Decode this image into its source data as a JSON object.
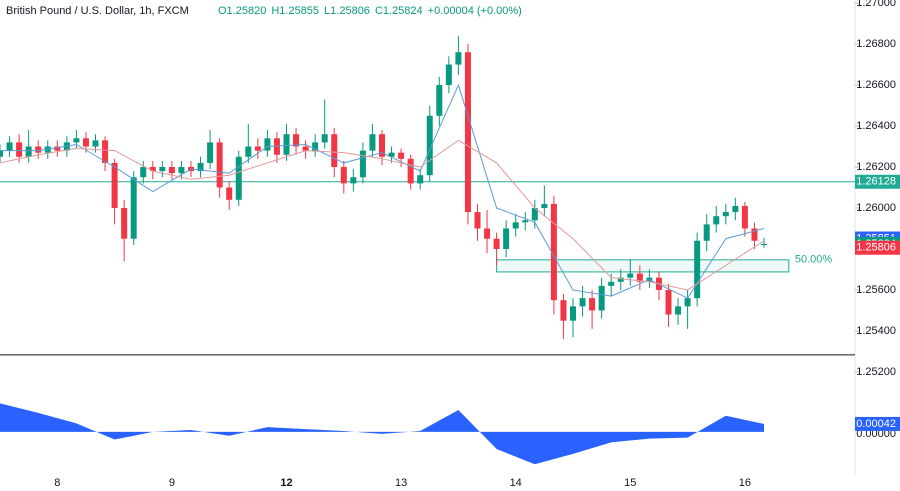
{
  "chart_data": {
    "type": "candlestick",
    "title": "British Pound / U.S. Dollar, 1h, FXCM",
    "ohlc_header": [
      "O1.25820",
      "H1.25855",
      "L1.25806",
      "C1.25824",
      "+0.00004 (+0.00%)"
    ],
    "categories": [
      null,
      null,
      null,
      null,
      null,
      null,
      "8",
      null,
      null,
      null,
      null,
      null,
      null,
      null,
      null,
      null,
      null,
      null,
      "9",
      null,
      null,
      null,
      null,
      null,
      null,
      null,
      null,
      null,
      null,
      null,
      "12",
      null,
      null,
      null,
      null,
      null,
      null,
      null,
      null,
      null,
      null,
      null,
      "13",
      null,
      null,
      null,
      null,
      null,
      null,
      null,
      null,
      null,
      null,
      null,
      "14",
      null,
      null,
      null,
      null,
      null,
      null,
      null,
      null,
      null,
      null,
      null,
      "15",
      null,
      null,
      null,
      null,
      null,
      null,
      null,
      null,
      null,
      null,
      null,
      "16",
      null,
      null
    ],
    "bold_categories": [
      "12"
    ],
    "open": [
      1.2625,
      1.2628,
      1.2632,
      1.2625,
      1.263,
      1.2627,
      1.263,
      1.2628,
      1.2632,
      1.2634,
      1.263,
      1.2633,
      1.2622,
      1.26,
      1.2585,
      1.2615,
      1.262,
      1.2618,
      1.262,
      1.2617,
      1.262,
      1.2618,
      1.2622,
      1.2632,
      1.261,
      1.2604,
      1.2625,
      1.263,
      1.2628,
      1.2634,
      1.2626,
      1.2636,
      1.263,
      1.2628,
      1.2632,
      1.2636,
      1.262,
      1.2612,
      1.2615,
      1.2628,
      1.2636,
      1.2625,
      1.2627,
      1.2624,
      1.2612,
      1.2616,
      1.2645,
      1.266,
      1.267,
      1.2676,
      1.2598,
      1.259,
      1.2585,
      1.258,
      1.259,
      1.2593,
      1.2594,
      1.26,
      1.2602,
      1.2555,
      1.2545,
      1.2552,
      1.2556,
      1.255,
      1.2562,
      1.2564,
      1.2566,
      1.2568,
      1.2564,
      1.2566,
      1.256,
      1.2548,
      1.2552,
      1.2556,
      1.2584,
      1.2592,
      1.2596,
      1.2598,
      1.2601,
      1.259,
      1.2582
    ],
    "high": [
      1.2631,
      1.2635,
      1.2636,
      1.2638,
      1.2633,
      1.2633,
      1.2633,
      1.2635,
      1.2638,
      1.2637,
      1.2636,
      1.2635,
      1.2624,
      1.2604,
      1.2618,
      1.2623,
      1.2623,
      1.2623,
      1.2623,
      1.2623,
      1.2623,
      1.2625,
      1.2638,
      1.2634,
      1.2613,
      1.2628,
      1.2641,
      1.2634,
      1.2638,
      1.2637,
      1.2641,
      1.2639,
      1.2633,
      1.2636,
      1.2653,
      1.2639,
      1.2623,
      1.2619,
      1.2632,
      1.2641,
      1.2638,
      1.263,
      1.2629,
      1.2626,
      1.2619,
      1.265,
      1.2664,
      1.2674,
      1.2684,
      1.268,
      1.2602,
      1.2599,
      1.2588,
      1.2594,
      1.2597,
      1.2598,
      1.2604,
      1.2611,
      1.2606,
      1.2558,
      1.2556,
      1.2562,
      1.256,
      1.2566,
      1.2568,
      1.257,
      1.2575,
      1.2572,
      1.257,
      1.2569,
      1.2563,
      1.2556,
      1.256,
      1.2588,
      1.2597,
      1.2601,
      1.2602,
      1.2605,
      1.2603,
      1.2593,
      1.25855
    ],
    "low": [
      1.2622,
      1.2625,
      1.2622,
      1.2622,
      1.2624,
      1.2624,
      1.2625,
      1.2625,
      1.2629,
      1.2627,
      1.2627,
      1.2618,
      1.2592,
      1.2574,
      1.2582,
      1.2612,
      1.2614,
      1.2615,
      1.2614,
      1.2614,
      1.2615,
      1.2615,
      1.2619,
      1.2605,
      1.2599,
      1.2601,
      1.2622,
      1.2624,
      1.2625,
      1.2622,
      1.2623,
      1.2626,
      1.2624,
      1.2625,
      1.2629,
      1.2615,
      1.2607,
      1.2608,
      1.2612,
      1.2625,
      1.2621,
      1.2622,
      1.262,
      1.2609,
      1.2609,
      1.2613,
      1.264,
      1.2656,
      1.2665,
      1.2592,
      1.2584,
      1.2578,
      1.2572,
      1.2576,
      1.2586,
      1.2589,
      1.259,
      1.2596,
      1.2548,
      1.2536,
      1.2537,
      1.2547,
      1.2541,
      1.2546,
      1.2557,
      1.256,
      1.2562,
      1.256,
      1.2561,
      1.2555,
      1.2542,
      1.2543,
      1.2541,
      1.2552,
      1.2579,
      1.2588,
      1.2592,
      1.2594,
      1.2586,
      1.258,
      1.25806
    ],
    "close": [
      1.2628,
      1.2632,
      1.2625,
      1.263,
      1.2627,
      1.263,
      1.2628,
      1.2632,
      1.2634,
      1.263,
      1.2633,
      1.2622,
      1.26,
      1.2585,
      1.2615,
      1.262,
      1.2618,
      1.262,
      1.2617,
      1.262,
      1.2618,
      1.2622,
      1.2632,
      1.261,
      1.2604,
      1.2625,
      1.263,
      1.2628,
      1.2634,
      1.2626,
      1.2636,
      1.263,
      1.2628,
      1.2632,
      1.2636,
      1.262,
      1.2612,
      1.2615,
      1.2628,
      1.2636,
      1.2625,
      1.2627,
      1.2624,
      1.2612,
      1.2616,
      1.2645,
      1.266,
      1.267,
      1.2676,
      1.2598,
      1.259,
      1.2585,
      1.258,
      1.259,
      1.2593,
      1.2594,
      1.26,
      1.2602,
      1.2555,
      1.2545,
      1.2552,
      1.2556,
      1.255,
      1.2562,
      1.2564,
      1.2566,
      1.2568,
      1.2564,
      1.2566,
      1.256,
      1.2548,
      1.2552,
      1.2556,
      1.2584,
      1.2592,
      1.2596,
      1.2598,
      1.2601,
      1.259,
      1.2584,
      1.25824
    ],
    "up_color": "#089981",
    "down_color": "#f23645",
    "series": [
      {
        "color": "#5b9bd5",
        "x": [
          0,
          4,
          8,
          12,
          16,
          20,
          24,
          28,
          32,
          36,
          40,
          44,
          48,
          52,
          56,
          60,
          64,
          68,
          72,
          76,
          80
        ],
        "values": [
          1.2628,
          1.2628,
          1.2631,
          1.262,
          1.2608,
          1.2619,
          1.2617,
          1.263,
          1.2631,
          1.2622,
          1.2627,
          1.2618,
          1.266,
          1.26,
          1.2593,
          1.256,
          1.2557,
          1.2565,
          1.2556,
          1.2585,
          1.259
        ]
      },
      {
        "color": "#e39a9a",
        "x": [
          0,
          4,
          8,
          12,
          16,
          20,
          24,
          28,
          32,
          36,
          40,
          44,
          48,
          52,
          56,
          60,
          64,
          68,
          72,
          76,
          80
        ],
        "values": [
          1.2622,
          1.2626,
          1.2629,
          1.2628,
          1.2618,
          1.2614,
          1.2616,
          1.2622,
          1.2628,
          1.2627,
          1.2624,
          1.262,
          1.2633,
          1.2622,
          1.26,
          1.2585,
          1.2566,
          1.2564,
          1.256,
          1.2572,
          1.2584
        ]
      }
    ],
    "ylim": [
      1.25102,
      1.27015
    ],
    "yticks": [
      {
        "value": 1.27,
        "label": "1.27000"
      },
      {
        "value": 1.268,
        "label": "1.26800"
      },
      {
        "value": 1.266,
        "label": "1.26600"
      },
      {
        "value": 1.264,
        "label": "1.26400"
      },
      {
        "value": 1.262,
        "label": "1.26200"
      },
      {
        "value": 1.26,
        "label": "1.26000"
      },
      {
        "value": 1.256,
        "label": "1.25600"
      },
      {
        "value": 1.254,
        "label": "1.25400"
      },
      {
        "value": 1.252,
        "label": "1.25200"
      }
    ],
    "hlines": [
      {
        "value": 1.26128,
        "color": "#22ab94"
      },
      {
        "value": 1.25283,
        "color": "#131722"
      }
    ],
    "zone": {
      "label": "50.00%",
      "top": 1.25747,
      "bottom": 1.25688,
      "start": 52,
      "end": 82.6,
      "color": "#22ab94"
    },
    "price_labels": [
      {
        "value": 1.26128,
        "color": "#22ab94"
      },
      {
        "value": 1.25851,
        "color": "#2962ff"
      },
      {
        "value": 1.25824,
        "color": "#089981"
      },
      {
        "value": 1.25806,
        "color": "#f23645"
      }
    ],
    "oscillator": {
      "color": "#2962ff",
      "x": [
        0,
        4,
        8,
        12,
        16,
        20,
        24,
        28,
        32,
        36,
        40,
        44,
        48,
        52,
        56,
        60,
        64,
        68,
        72,
        76,
        80
      ],
      "values": [
        0.0015,
        0.001,
        0.00045,
        -0.0004,
        0,
        0.0001,
        -0.0002,
        0.00025,
        0.00015,
        5e-05,
        -0.0001,
        5e-05,
        0.00115,
        -0.0009,
        -0.0017,
        -0.00115,
        -0.00055,
        -0.00035,
        -0.0003,
        0.00085,
        0.00042
      ],
      "ylim": [
        -0.002,
        0.00194
      ],
      "yticks": [
        {
          "value": 0,
          "label": "0.00000"
        }
      ],
      "last_label": 0.00042
    }
  }
}
